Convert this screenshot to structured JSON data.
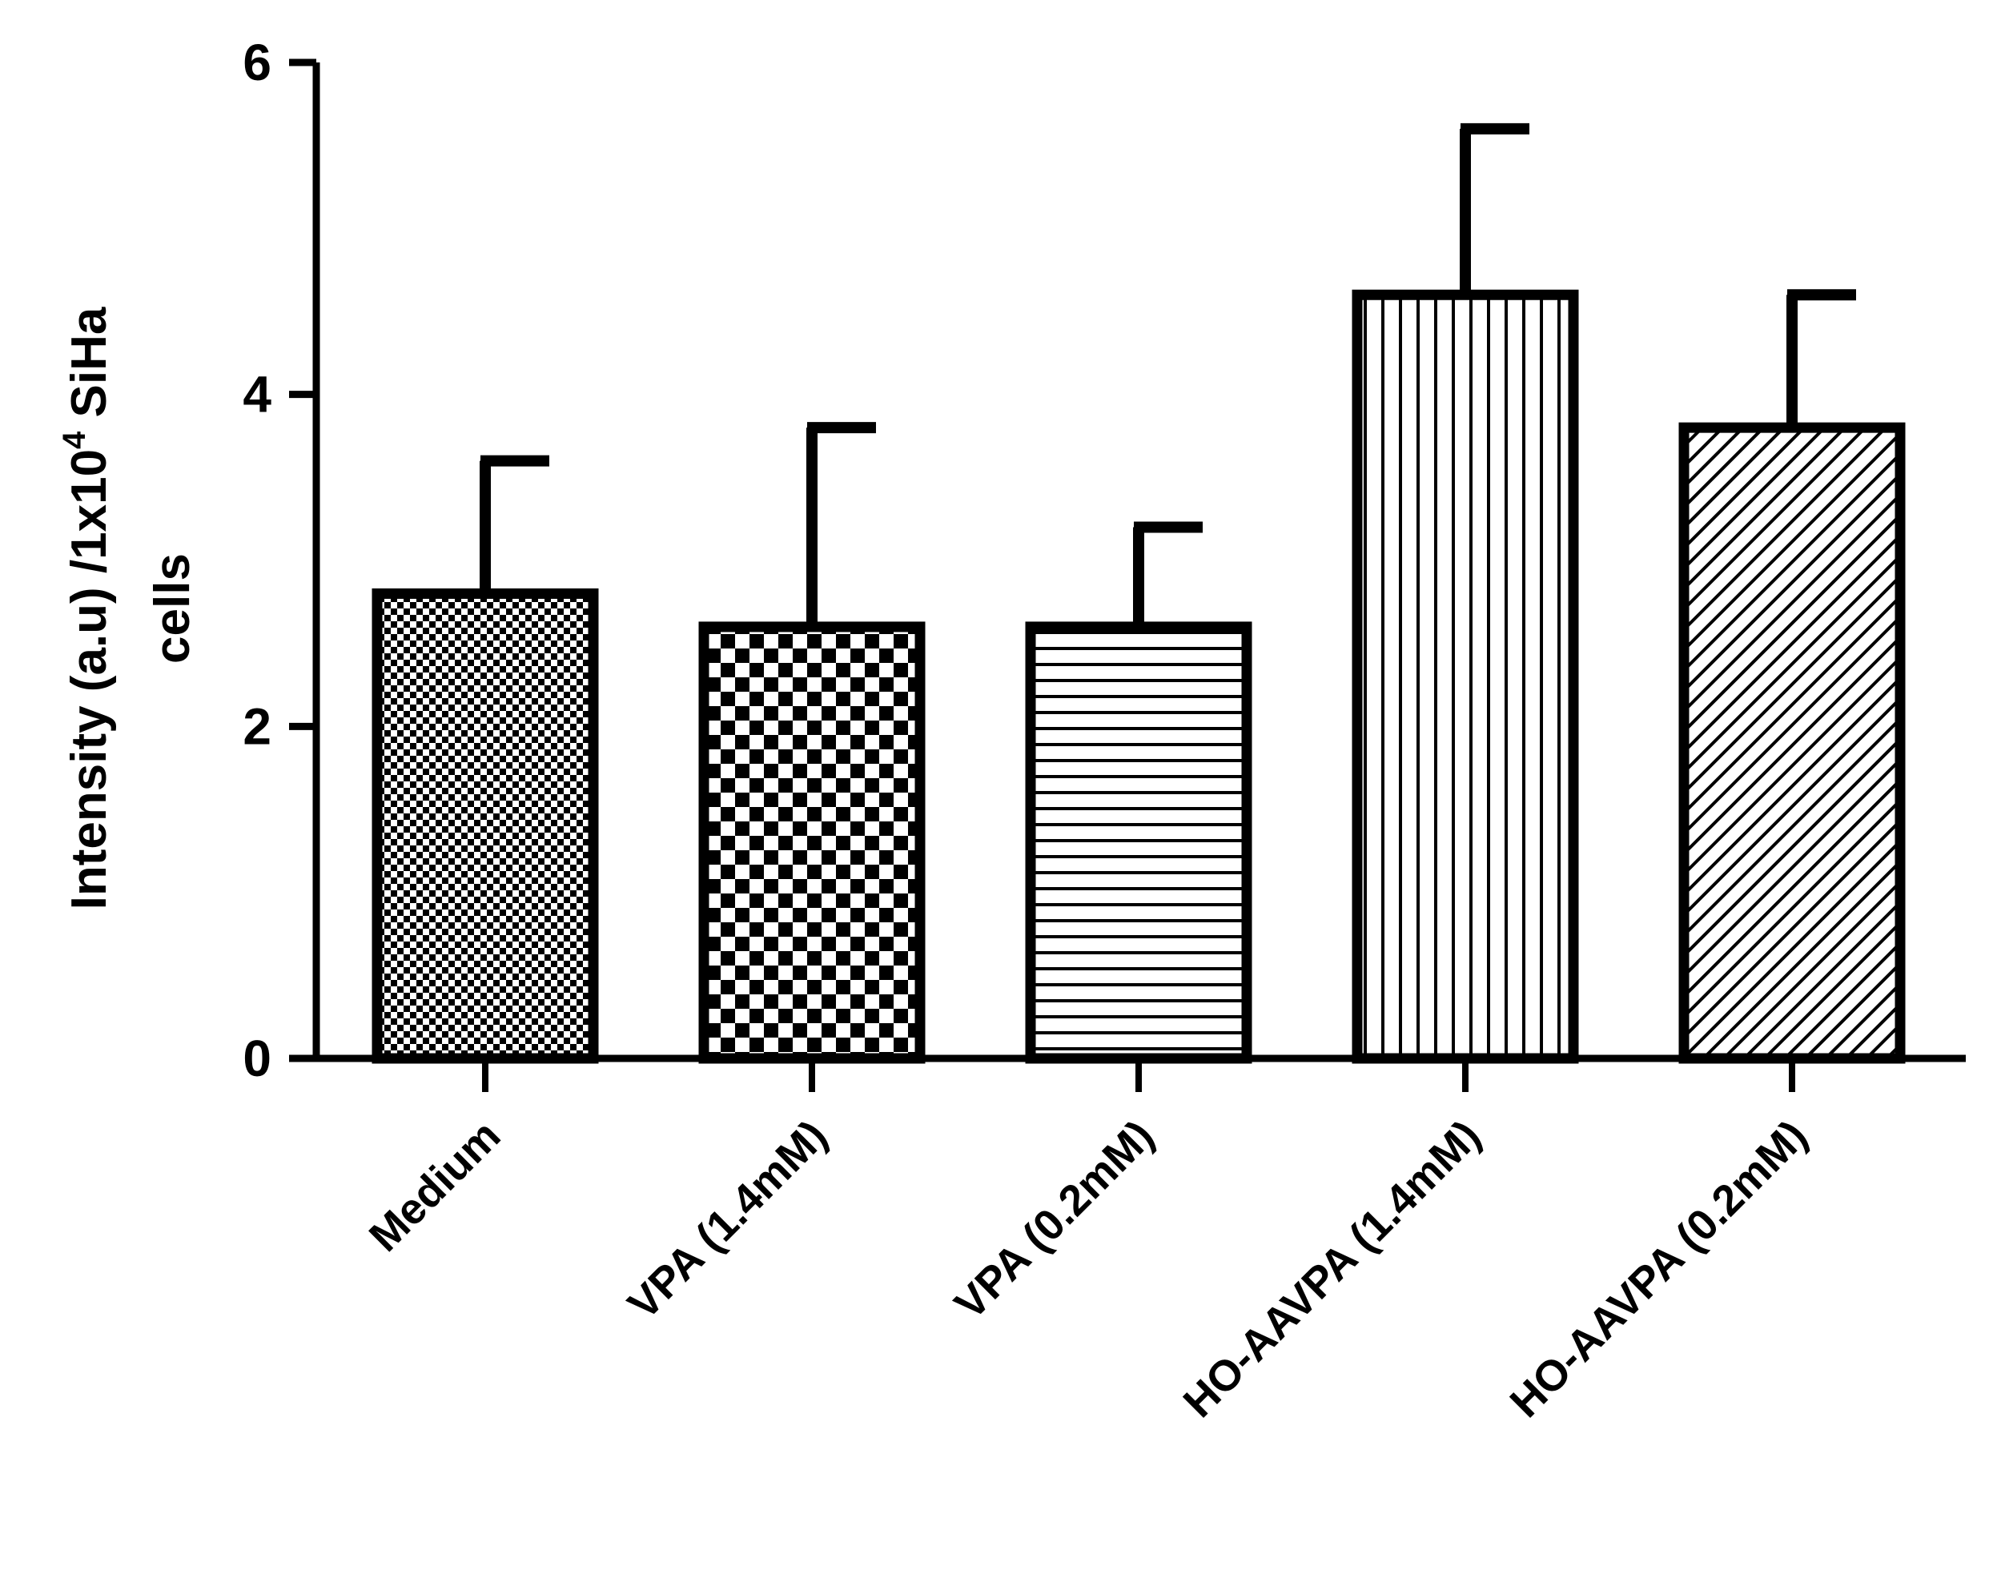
{
  "chart_data": {
    "type": "bar",
    "title": "",
    "xlabel": "",
    "ylabel": {
      "line1_prefix": "Intensity (a.u) /1x10",
      "line1_superscript": "4",
      "line1_suffix": " SiHa",
      "line2": "cells"
    },
    "ylim": [
      0,
      6
    ],
    "yticks": [
      "0",
      "2",
      "4",
      "6"
    ],
    "categories": [
      "Medium",
      "VPA (1.4mM)",
      "VPA (0.2mM)",
      "HO-AAVPA (1.4mM)",
      "HO-AAVPA (0.2mM)"
    ],
    "values": [
      2.8,
      2.6,
      2.6,
      4.6,
      3.8
    ],
    "errors": [
      0.8,
      1.2,
      0.6,
      1.0,
      0.8
    ],
    "patterns": [
      "fine-checker",
      "checker",
      "horizontal-lines",
      "vertical-lines",
      "diagonal-lines"
    ],
    "colors": {
      "ink": "#000000",
      "background": "#ffffff"
    },
    "grid": false
  }
}
